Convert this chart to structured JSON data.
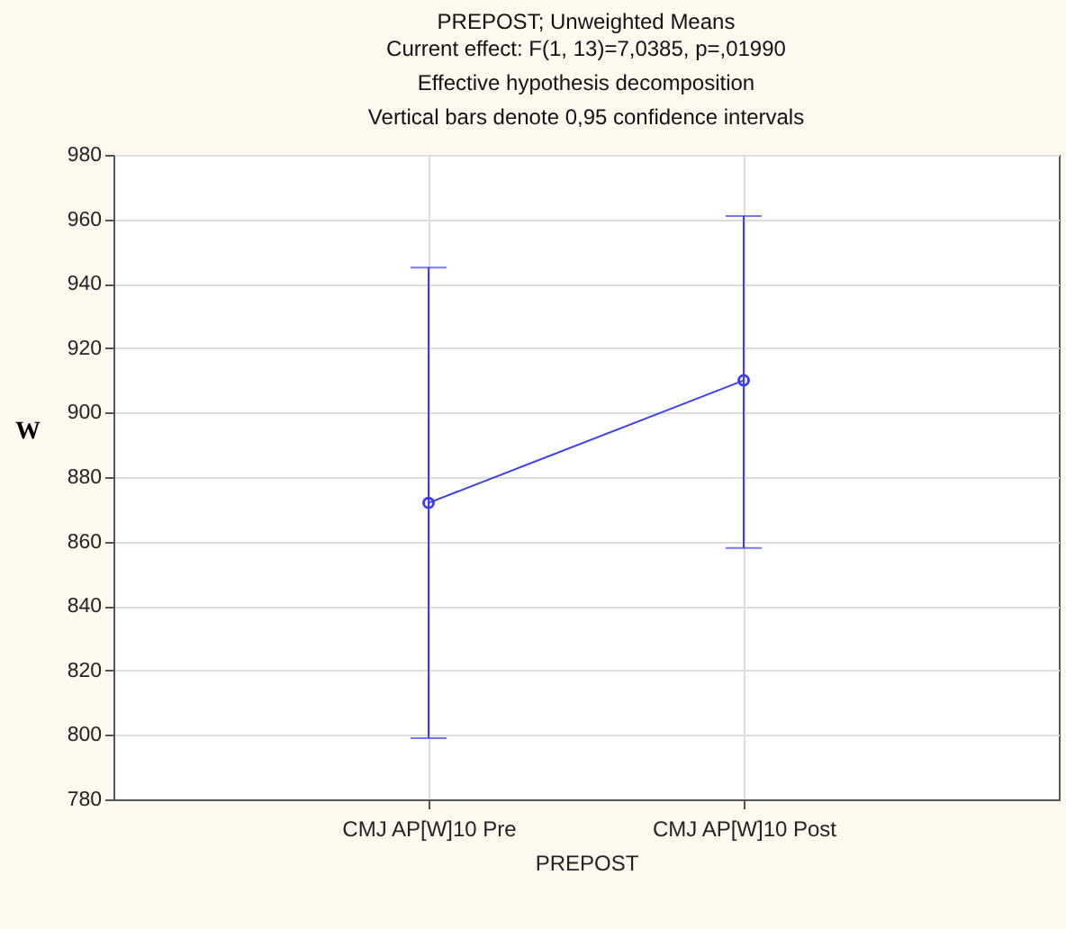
{
  "chart_data": {
    "type": "line",
    "title": "PREPOST; Unweighted Means",
    "subtitle": "Current effect: F(1, 13)=7,0385, p=,01990\nEffective hypothesis decomposition\nVertical bars denote 0,95 confidence intervals",
    "xlabel": "PREPOST",
    "ylabel": "W",
    "categories": [
      "CMJ AP[W]10 Pre",
      "CMJ AP[W]10 Post"
    ],
    "series": [
      {
        "color": "#3c3cf5",
        "values": [
          872,
          910
        ],
        "errors": [
          [
            799,
            945
          ],
          [
            858,
            961
          ]
        ]
      }
    ],
    "ylim": [
      780,
      980
    ],
    "yticks": [
      780,
      800,
      820,
      840,
      860,
      880,
      900,
      920,
      940,
      960,
      980
    ],
    "grid": true,
    "marker": "circle",
    "line_style": "solid"
  }
}
